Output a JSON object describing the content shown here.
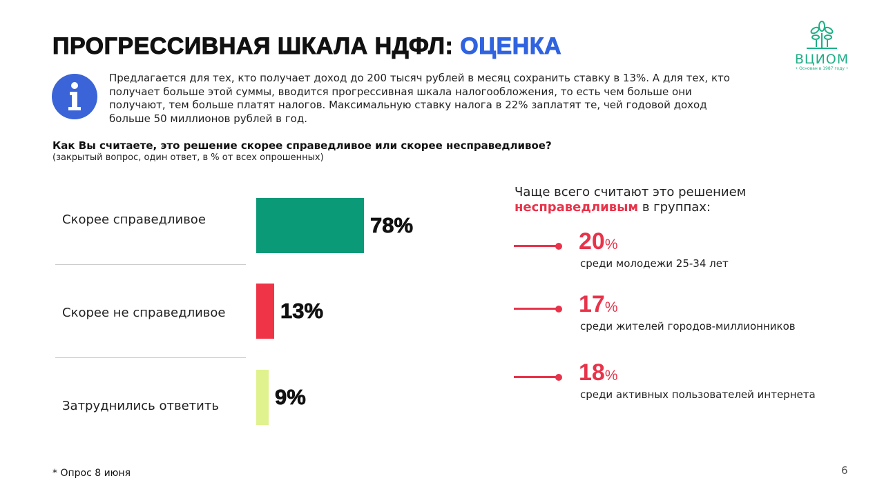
{
  "title": {
    "main": "ПРОГРЕССИВНАЯ ШКАЛА НДФЛ: ",
    "accent": "ОЦЕНКА"
  },
  "logo": {
    "name": "ВЦИОМ",
    "tagline": "• Основан в 1987 году •"
  },
  "intro": "Предлагается для тех, кто получает доход до 200 тысяч рублей в месяц сохранить ставку в 13%. А для тех, кто получает больше этой суммы, вводится прогрессивная шкала налогообложения, то есть чем больше они получают, тем больше платят налогов. Максимальную ставку налога в 22% заплатят те, чей годовой доход больше 50 миллионов рублей в год.",
  "question": "Как Вы считаете, это решение скорее справедливое  или скорее несправедливое?",
  "note": "(закрытый вопрос, один ответ, в % от всех опрошенных)",
  "chart_data": {
    "type": "bar",
    "categories": [
      "Скорее справедливое",
      "Скорее не справедливое",
      "Затруднились ответить"
    ],
    "values": [
      78,
      13,
      9
    ],
    "labels": [
      "78%",
      "13%",
      "9%"
    ],
    "colors": [
      "#0a9a78",
      "#ef3447",
      "#dff28e"
    ],
    "title": "",
    "xlabel": "",
    "ylabel": "",
    "xlim": [
      0,
      100
    ]
  },
  "side": {
    "title_pre": "Чаще всего считают это решением",
    "title_red": "несправедливым",
    "title_post": " в группах:",
    "groups": [
      {
        "value": "20",
        "unit": "%",
        "desc": "среди молодежи 25-34 лет"
      },
      {
        "value": "17",
        "unit": "%",
        "desc": "среди жителей городов-миллионников"
      },
      {
        "value": "18",
        "unit": "%",
        "desc": "среди активных пользователей интернета"
      }
    ]
  },
  "footnote": "* Опрос 8 июня",
  "page_number": "6",
  "colors": {
    "accent": "#2f63e0",
    "red": "#e8334a",
    "green": "#0a9a78"
  }
}
